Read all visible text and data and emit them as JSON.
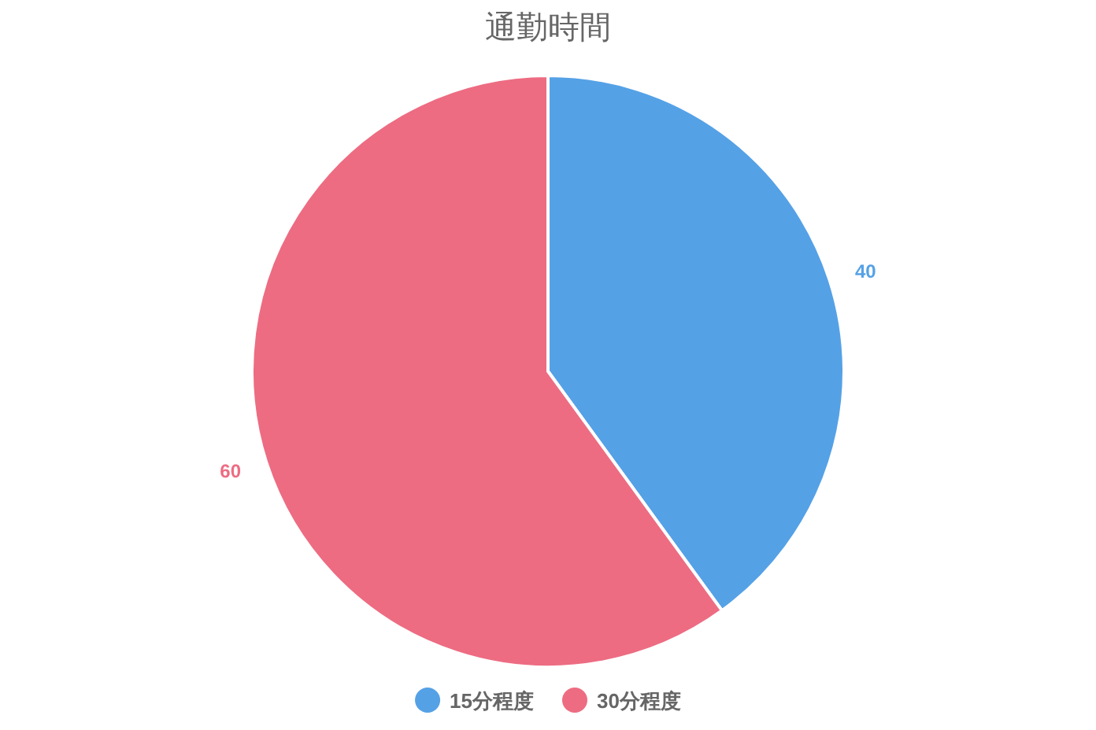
{
  "chart_data": {
    "type": "pie",
    "title": "通勤時間",
    "categories": [
      "15分程度",
      "30分程度"
    ],
    "values": [
      40,
      60
    ],
    "colors": [
      "#55a1e6",
      "#ed6c82"
    ],
    "data_labels": true,
    "legend": "bottom"
  }
}
